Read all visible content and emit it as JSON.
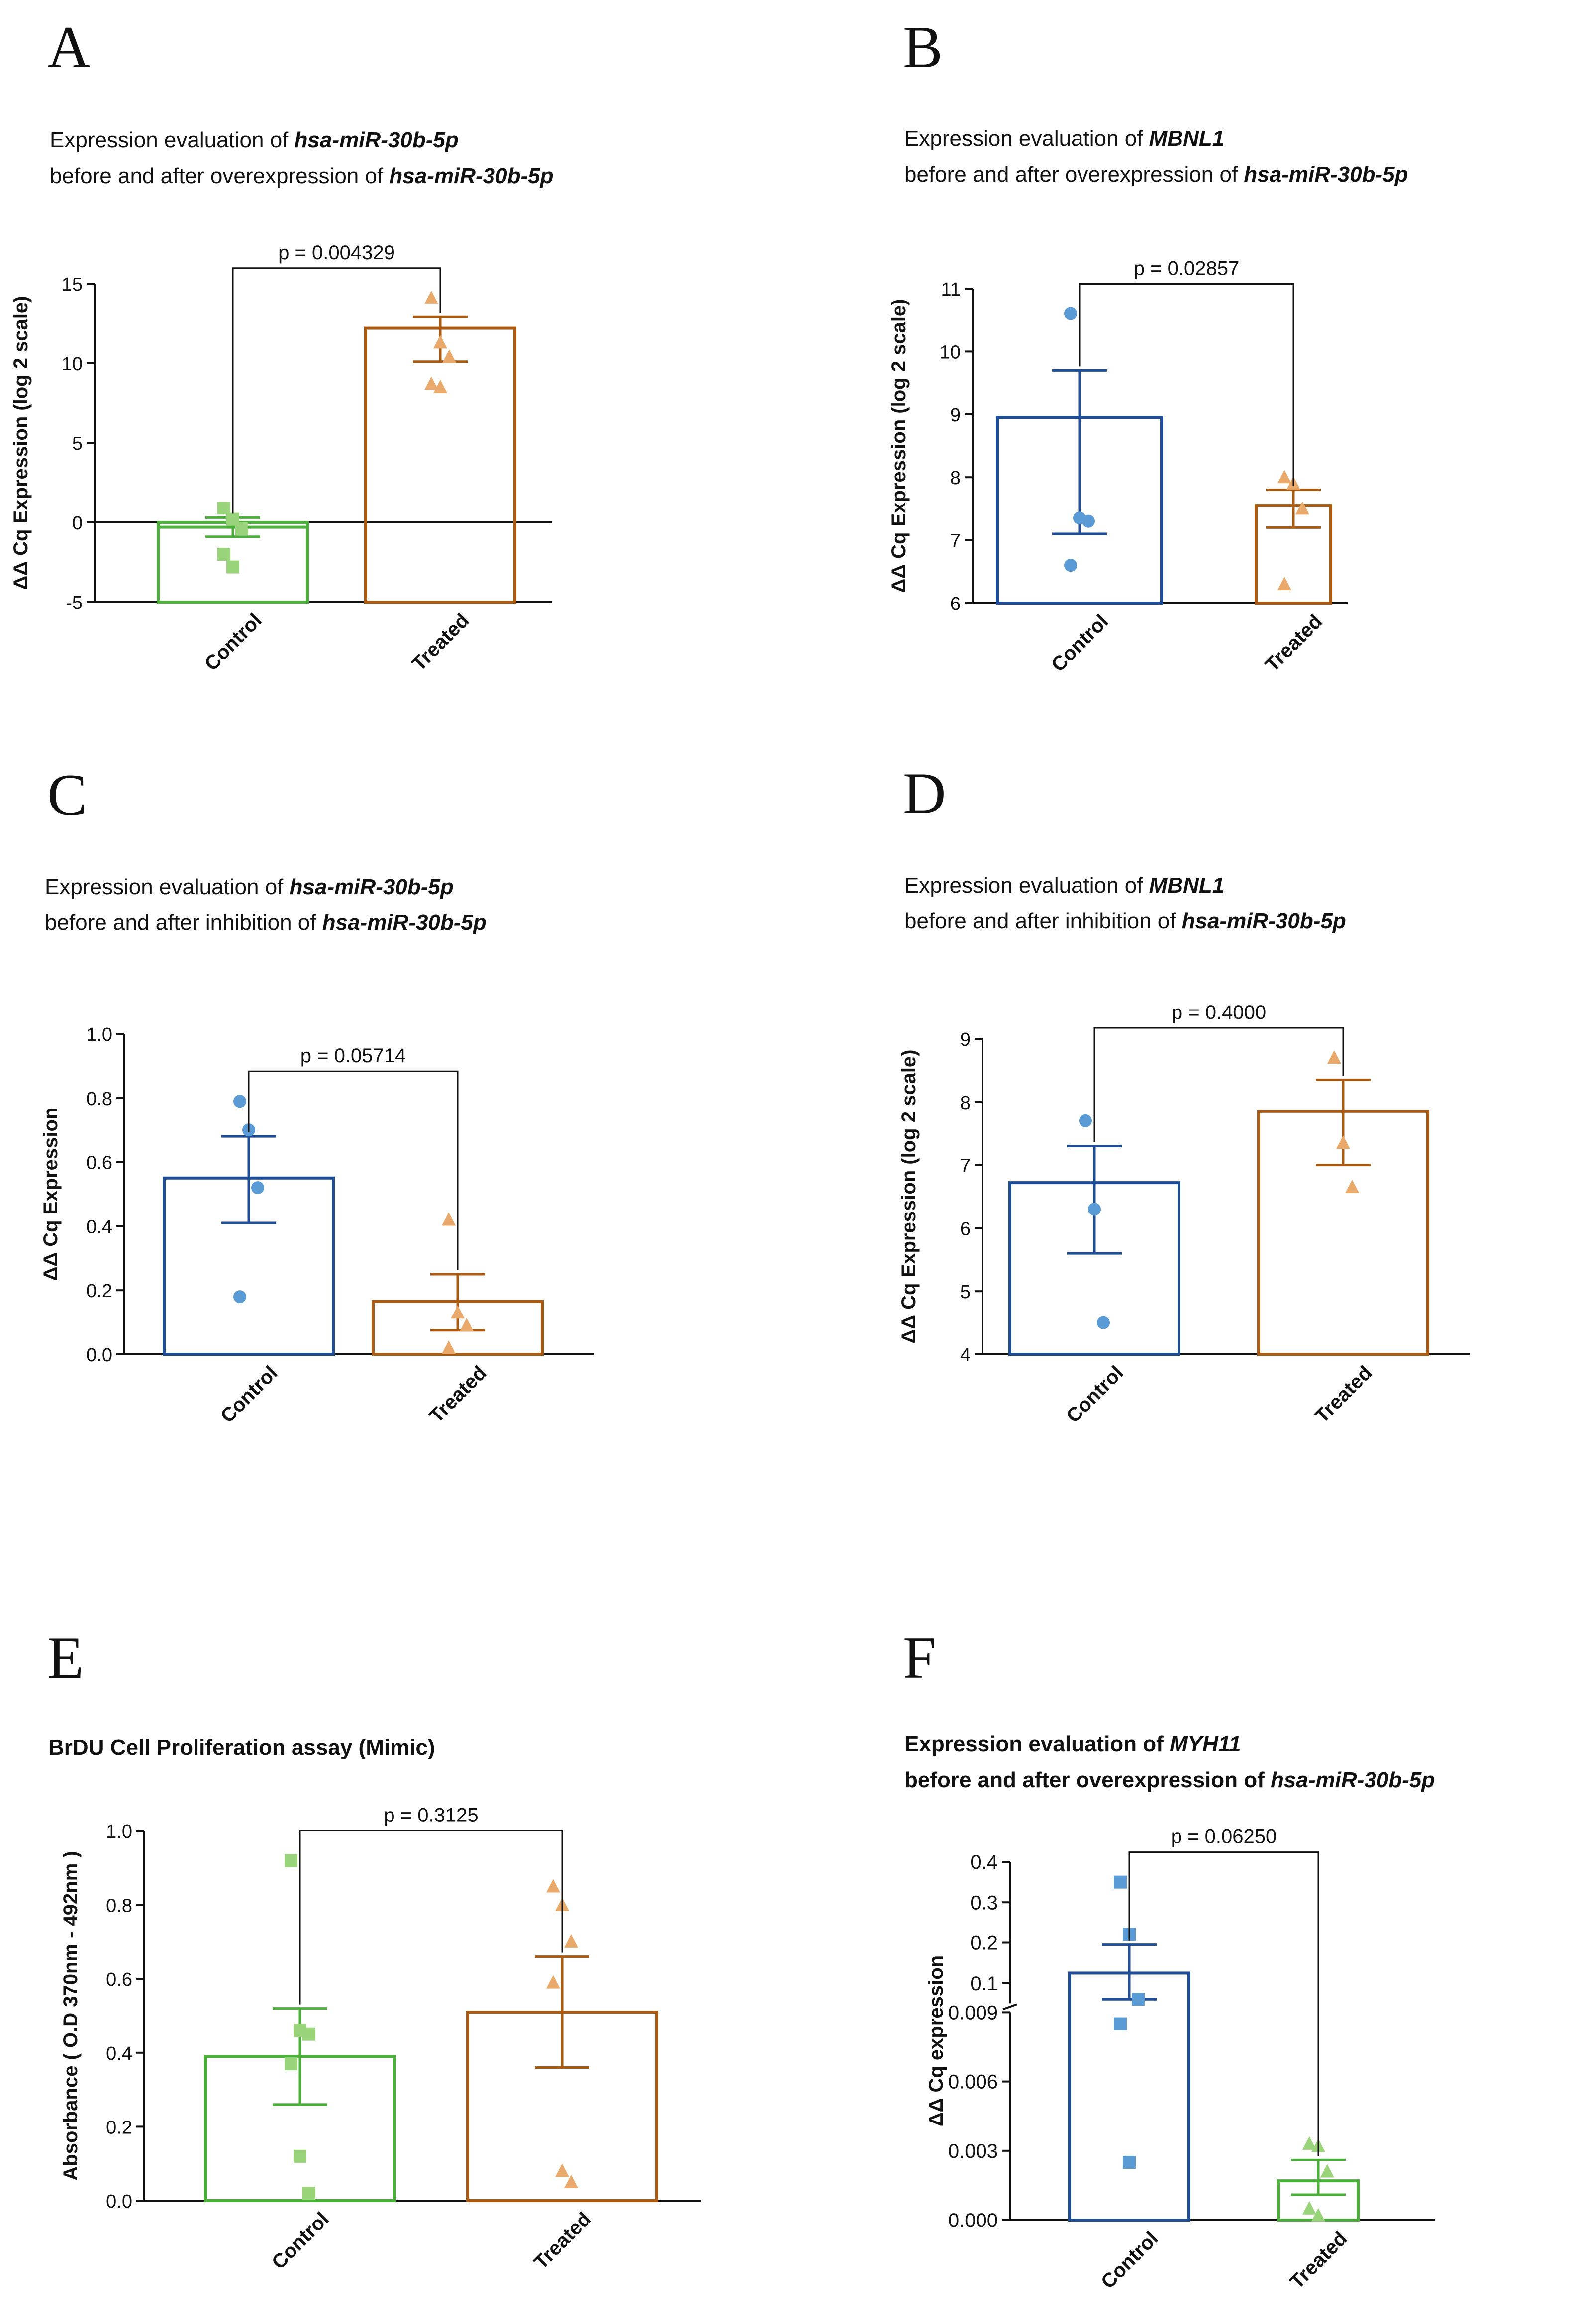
{
  "figure": {
    "colors": {
      "blue": "#1f4e96",
      "blue_pt": "#5b9bd5",
      "orange": "#a95b14",
      "orange_pt": "#e9a96a",
      "green": "#4caf3c",
      "green_pt": "#9ad47a",
      "black": "#111111"
    }
  },
  "chart_data": [
    {
      "panel": "A",
      "type": "bar",
      "title_lines": [
        [
          "Expression evaluation of ",
          "hsa-miR-30b-5p"
        ],
        [
          "before and after overexpression of ",
          "hsa-miR-30b-5p"
        ]
      ],
      "ylabel": "ΔΔ Cq Expression (log 2 scale)",
      "ylim": [
        -5,
        15
      ],
      "yticks": [
        -5,
        0,
        5,
        10,
        15
      ],
      "tick_labels": [
        "-5",
        "0",
        "5",
        "10",
        "15"
      ],
      "zero_line": true,
      "categories": [
        "Control",
        "Treated"
      ],
      "p_text": "p = 0.004329",
      "bars": [
        {
          "name": "Control",
          "mean": -0.3,
          "sem_low": -0.9,
          "sem_high": 0.3,
          "color": "green",
          "marker": "square",
          "points": [
            0.9,
            0.2,
            -0.4,
            -2.0,
            -2.8
          ]
        },
        {
          "name": "Treated",
          "mean": 12.2,
          "sem_low": 10.1,
          "sem_high": 12.9,
          "color": "orange",
          "marker": "triangle",
          "points": [
            14.1,
            11.3,
            10.4,
            8.7,
            8.5
          ]
        }
      ]
    },
    {
      "panel": "B",
      "type": "bar",
      "title_lines": [
        [
          "Expression evaluation of ",
          "MBNL1"
        ],
        [
          "before and after overexpression of ",
          "hsa-miR-30b-5p"
        ]
      ],
      "ylabel": "ΔΔ Cq Expression (log 2 scale)",
      "ylim": [
        6,
        11
      ],
      "yticks": [
        6,
        7,
        8,
        9,
        10,
        11
      ],
      "tick_labels": [
        "6",
        "7",
        "8",
        "9",
        "10",
        "11"
      ],
      "categories": [
        "Control",
        "Treated"
      ],
      "p_text": "p = 0.02857",
      "bars": [
        {
          "name": "Control",
          "mean": 8.95,
          "sem_low": 7.1,
          "sem_high": 9.7,
          "color": "blue",
          "marker": "circle",
          "points": [
            10.6,
            7.35,
            7.3,
            6.6
          ]
        },
        {
          "name": "Treated",
          "mean": 7.55,
          "sem_low": 7.2,
          "sem_high": 7.8,
          "color": "orange",
          "marker": "triangle",
          "points": [
            8.0,
            7.9,
            7.5,
            6.3
          ]
        }
      ]
    },
    {
      "panel": "C",
      "type": "bar",
      "title_lines": [
        [
          "Expression evaluation of ",
          "hsa-miR-30b-5p"
        ],
        [
          "before and after inhibition of ",
          "hsa-miR-30b-5p"
        ]
      ],
      "ylabel": "ΔΔ Cq Expression",
      "ylim": [
        0,
        1
      ],
      "yticks": [
        0,
        0.2,
        0.4,
        0.6,
        0.8,
        1.0
      ],
      "tick_labels": [
        "0.0",
        "0.2",
        "0.4",
        "0.6",
        "0.8",
        "1.0"
      ],
      "categories": [
        "Control",
        "Treated"
      ],
      "p_text": "p = 0.05714",
      "bars": [
        {
          "name": "Control",
          "mean": 0.55,
          "sem_low": 0.41,
          "sem_high": 0.68,
          "color": "blue",
          "marker": "circle",
          "points": [
            0.79,
            0.7,
            0.52,
            0.18
          ]
        },
        {
          "name": "Treated",
          "mean": 0.165,
          "sem_low": 0.075,
          "sem_high": 0.25,
          "color": "orange",
          "marker": "triangle",
          "points": [
            0.42,
            0.13,
            0.09,
            0.02
          ]
        }
      ]
    },
    {
      "panel": "D",
      "type": "bar",
      "title_lines": [
        [
          "Expression evaluation of ",
          "MBNL1"
        ],
        [
          "before and after inhibition of ",
          "hsa-miR-30b-5p"
        ]
      ],
      "ylabel": "ΔΔ Cq Expression (log 2 scale)",
      "ylim": [
        4,
        9
      ],
      "yticks": [
        4,
        5,
        6,
        7,
        8,
        9
      ],
      "tick_labels": [
        "4",
        "5",
        "6",
        "7",
        "8",
        "9"
      ],
      "categories": [
        "Control",
        "Treated"
      ],
      "p_text": "p = 0.4000",
      "bars": [
        {
          "name": "Control",
          "mean": 6.72,
          "sem_low": 5.6,
          "sem_high": 7.3,
          "color": "blue",
          "marker": "circle",
          "points": [
            7.7,
            6.3,
            4.5
          ]
        },
        {
          "name": "Treated",
          "mean": 7.85,
          "sem_low": 7.0,
          "sem_high": 8.35,
          "color": "orange",
          "marker": "triangle",
          "points": [
            8.7,
            7.35,
            6.65
          ]
        }
      ]
    },
    {
      "panel": "E",
      "type": "bar",
      "title_lines": [
        [
          "BrDU Cell Proliferation assay (Mimic)",
          ""
        ]
      ],
      "ylabel": "Absorbance ( O.D 370nm - 492nm )",
      "ylim": [
        0,
        1
      ],
      "yticks": [
        0,
        0.2,
        0.4,
        0.6,
        0.8,
        1.0
      ],
      "tick_labels": [
        "0.0",
        "0.2",
        "0.4",
        "0.6",
        "0.8",
        "1.0"
      ],
      "categories": [
        "Control",
        "Treated"
      ],
      "p_text": "p = 0.3125",
      "bars": [
        {
          "name": "Control",
          "mean": 0.39,
          "sem_low": 0.26,
          "sem_high": 0.52,
          "color": "green",
          "marker": "square",
          "points": [
            0.92,
            0.46,
            0.45,
            0.37,
            0.12,
            0.02
          ]
        },
        {
          "name": "Treated",
          "mean": 0.51,
          "sem_low": 0.36,
          "sem_high": 0.66,
          "color": "orange",
          "marker": "triangle",
          "points": [
            0.85,
            0.8,
            0.7,
            0.59,
            0.08,
            0.05
          ]
        }
      ]
    },
    {
      "panel": "F",
      "type": "bar",
      "title_lines": [
        [
          "Expression evaluation of ",
          "MYH11"
        ],
        [
          "before and after overexpression of ",
          "hsa-miR-30b-5p"
        ]
      ],
      "ylabel": "ΔΔ Cq expression",
      "broken_axis": true,
      "lower_ylim": [
        0,
        0.009
      ],
      "upper_ylim": [
        0.05,
        0.4
      ],
      "lower_ticks": [
        0,
        0.003,
        0.006,
        0.009
      ],
      "lower_tick_labels": [
        "0.000",
        "0.003",
        "0.006",
        "0.009"
      ],
      "upper_ticks": [
        0.1,
        0.2,
        0.3,
        0.4
      ],
      "upper_tick_labels": [
        "0.1",
        "0.2",
        "0.3",
        "0.4"
      ],
      "categories": [
        "Control",
        "Treated"
      ],
      "p_text": "p = 0.06250",
      "bars": [
        {
          "name": "Control",
          "mean": 0.125,
          "sem_low": 0.06,
          "sem_high": 0.195,
          "color": "blue",
          "marker": "square",
          "points": [
            0.35,
            0.22,
            0.06,
            0.0085,
            0.0025
          ]
        },
        {
          "name": "Treated",
          "mean": 0.0017,
          "sem_low": 0.0011,
          "sem_high": 0.0026,
          "color": "green",
          "marker": "triangle",
          "points": [
            0.0033,
            0.0032,
            0.0021,
            0.0005,
            0.0002
          ]
        }
      ]
    }
  ]
}
